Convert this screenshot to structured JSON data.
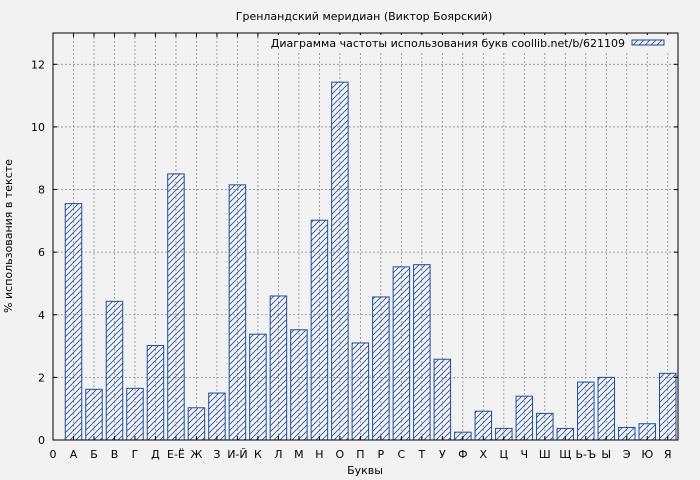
{
  "chart_data": {
    "type": "bar",
    "title": "Гренландский меридиан (Виктор Боярский)",
    "xlabel": "Буквы",
    "ylabel": "% использования в тексте",
    "legend": "Диаграмма частоты использования букв coollib.net/b/621109",
    "legend_position": "top-right",
    "grid": true,
    "ylim": [
      0,
      13
    ],
    "yticks": [
      0,
      2,
      4,
      6,
      8,
      10,
      12
    ],
    "x_origin_label": "0",
    "categories": [
      "А",
      "Б",
      "В",
      "Г",
      "Д",
      "Е-Ё",
      "Ж",
      "З",
      "И-Й",
      "К",
      "Л",
      "М",
      "Н",
      "О",
      "П",
      "Р",
      "С",
      "Т",
      "У",
      "Ф",
      "Х",
      "Ц",
      "Ч",
      "Ш",
      "Щ",
      "Ь-Ъ",
      "Ы",
      "Э",
      "Ю",
      "Я"
    ],
    "values": [
      7.55,
      1.62,
      4.43,
      1.65,
      3.02,
      8.5,
      1.03,
      1.5,
      8.15,
      3.38,
      4.6,
      3.52,
      7.02,
      11.43,
      3.1,
      4.57,
      5.53,
      5.6,
      2.58,
      0.25,
      0.92,
      0.37,
      1.4,
      0.85,
      0.37,
      1.85,
      2.0,
      0.4,
      0.52,
      2.13
    ],
    "colors": {
      "bar_stroke": "#1f4e9c",
      "hatch": "#1f4e9c",
      "plot_bg": "#f2f2f2",
      "grid": "#8c8c8c"
    }
  }
}
